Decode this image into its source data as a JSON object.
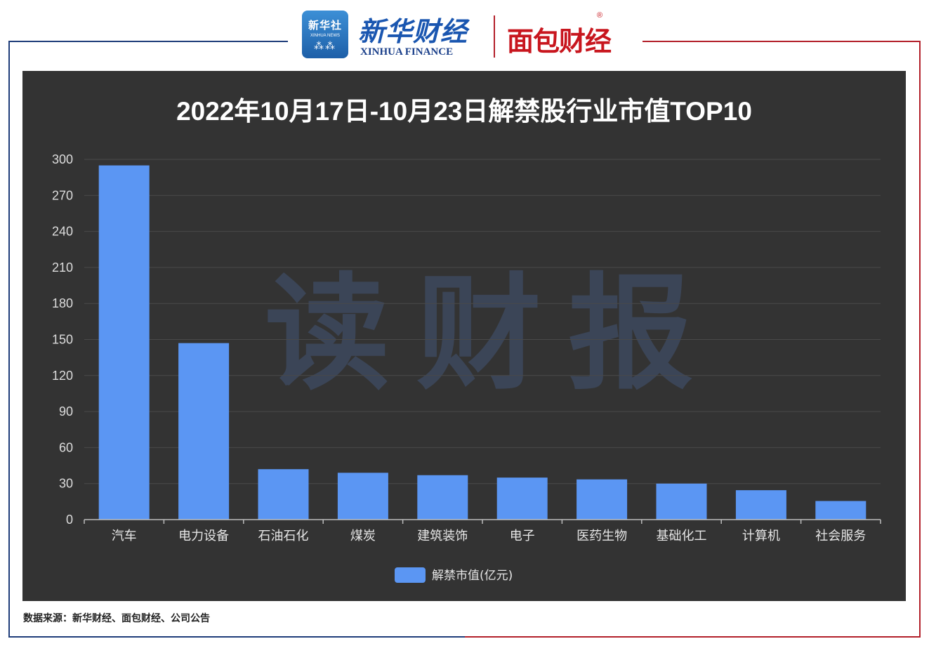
{
  "header": {
    "xinhua_logo_cn": "新华社",
    "xinhua_logo_en": "XINHUA NEWS",
    "xhf_logo_cn": "新华财经",
    "xhf_logo_en": "XINHUA FINANCE",
    "mbcj_logo": "面包财经",
    "registered_mark": "®"
  },
  "watermark": "读财报",
  "source_note": "数据来源：新华财经、面包财经、公司公告",
  "colors": {
    "bar": "#5b96f3",
    "panel": "#333333",
    "grid": "#4a4a4a"
  },
  "chart_data": {
    "type": "bar",
    "title": "2022年10月17日-10月23日解禁股行业市值TOP10",
    "categories": [
      "汽车",
      "电力设备",
      "石油石化",
      "煤炭",
      "建筑装饰",
      "电子",
      "医药生物",
      "基础化工",
      "计算机",
      "社会服务"
    ],
    "series": [
      {
        "name": "解禁市值(亿元)",
        "values": [
          295,
          147,
          42,
          39,
          37,
          35,
          33.5,
          30,
          24.5,
          15.5
        ]
      }
    ],
    "ylim": [
      0,
      300
    ],
    "yticks": [
      0,
      30,
      60,
      90,
      120,
      150,
      180,
      210,
      240,
      270,
      300
    ],
    "grid": true,
    "legend_position": "bottom-center"
  }
}
